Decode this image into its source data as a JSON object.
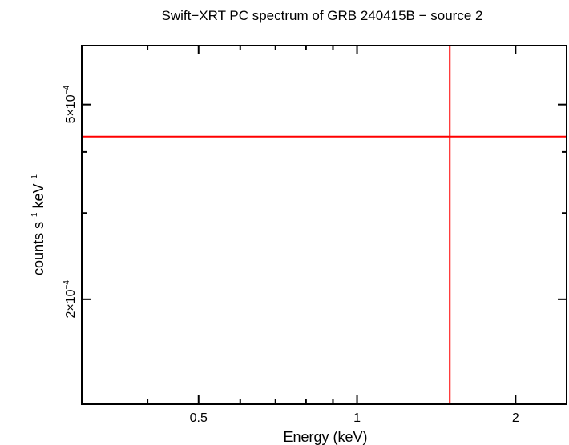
{
  "chart_data": {
    "type": "scatter",
    "title": "Swift−XRT PC spectrum of GRB 240415B − source 2",
    "xlabel": "Energy (keV)",
    "ylabel": {
      "pre": "counts s",
      "sup1": "−1",
      "mid": " keV",
      "sup2": "−1"
    },
    "x_scale": "log",
    "y_scale": "log",
    "xlim": [
      0.3,
      2.5
    ],
    "ylim": [
      0.000122,
      0.00066
    ],
    "x_major_ticks": [
      {
        "value": 0.5,
        "label": "0.5"
      },
      {
        "value": 1,
        "label": "1"
      },
      {
        "value": 2,
        "label": "2"
      }
    ],
    "x_minor_ticks": [
      0.4,
      0.6,
      0.7,
      0.8,
      0.9
    ],
    "y_major_ticks": [
      {
        "value": 0.0002,
        "base": "2×10",
        "exp": "−4"
      },
      {
        "value": 0.0005,
        "base": "5×10",
        "exp": "−4"
      }
    ],
    "y_minor_ticks": [
      0.0003,
      0.0004
    ],
    "series": [
      {
        "color": "#ff0000",
        "points": [
          {
            "x": 1.5,
            "x_low": 0.3,
            "x_high": 2.5,
            "y": 0.00043,
            "y_low": 0.000122,
            "y_high": 0.00066
          }
        ]
      }
    ],
    "grid": false,
    "legend": "none"
  }
}
